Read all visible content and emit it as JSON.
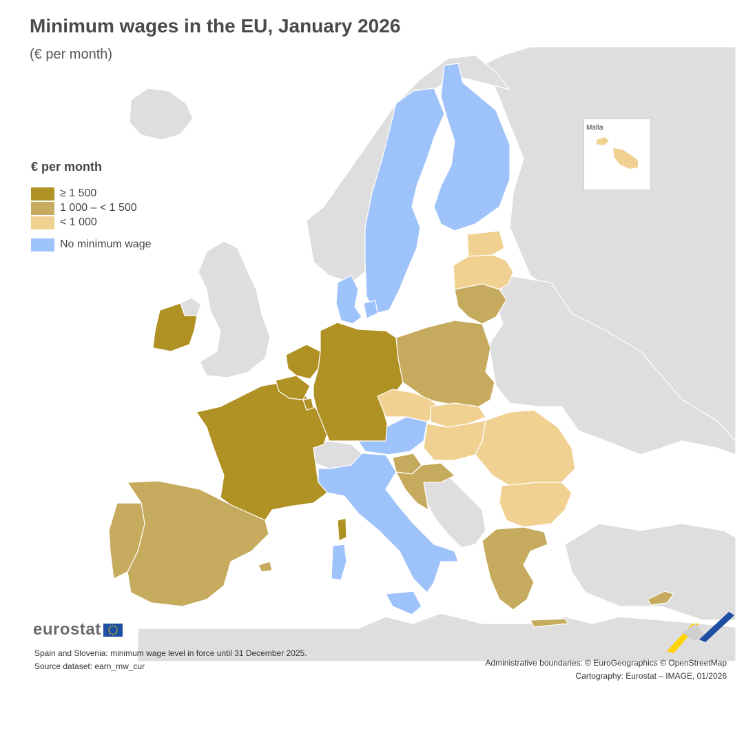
{
  "header": {
    "title": "Minimum wages in the EU, January 2026",
    "subtitle": "(€ per month)"
  },
  "legend": {
    "title": "€ per month",
    "items": [
      {
        "label": "≥ 1 500",
        "color": "#b09124"
      },
      {
        "label": "1 000 – < 1 500",
        "color": "#c6ab5e"
      },
      {
        "label": "< 1 000",
        "color": "#f0d192"
      },
      {
        "label": "No minimum wage",
        "color": "#9ec2fa"
      }
    ]
  },
  "map_colors": {
    "non_eu_land": "#dedede",
    "sea": "#ffffff",
    "border": "#ffffff"
  },
  "inset": {
    "label": "Malta"
  },
  "logo": {
    "text": "eurostat",
    "flag_color": "#1f4fa3",
    "star_color": "#ffd200"
  },
  "footer": {
    "note": "Spain and Slovenia: minimum wage level in force until 31 December 2025.",
    "source": "Source dataset: earn_mw_cur",
    "boundaries": "Administrative boundaries: © EuroGeographics © OpenStreetMap",
    "cartography": "Cartography: Eurostat – IMAGE, 01/2026"
  },
  "map_data": {
    "ge_1500": [
      "Ireland",
      "France",
      "Belgium",
      "Netherlands",
      "Luxembourg",
      "Germany"
    ],
    "1000_to_1500": [
      "Spain",
      "Portugal",
      "Poland",
      "Lithuania",
      "Slovenia",
      "Croatia",
      "Greece",
      "Cyprus"
    ],
    "lt_1000": [
      "Latvia",
      "Estonia",
      "Czechia",
      "Slovakia",
      "Hungary",
      "Romania",
      "Bulgaria",
      "Malta"
    ],
    "no_minimum_wage": [
      "Sweden",
      "Finland",
      "Denmark",
      "Austria",
      "Italy"
    ]
  }
}
